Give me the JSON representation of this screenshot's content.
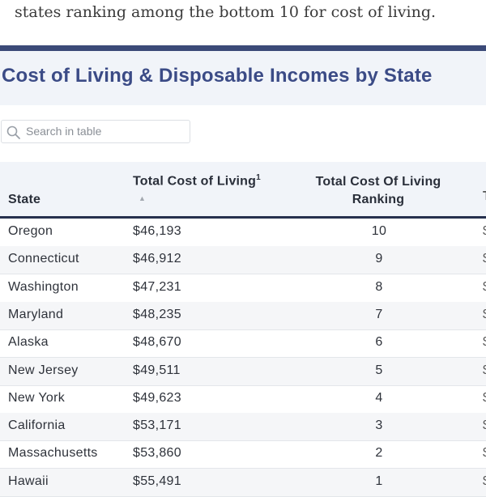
{
  "intro": {
    "line": "states ranking among the bottom 10 for cost of living."
  },
  "table": {
    "title": "Cost of Living & Disposable Incomes by State",
    "search": {
      "placeholder": "Search in table"
    },
    "columns": {
      "state": "State",
      "cost": "Total Cost of Living",
      "cost_footnote": "1",
      "rank": "Total Cost Of Living Ranking"
    },
    "rows": [
      {
        "state": "Oregon",
        "cost": "$46,193",
        "rank": "10"
      },
      {
        "state": "Connecticut",
        "cost": "$46,912",
        "rank": "9"
      },
      {
        "state": "Washington",
        "cost": "$47,231",
        "rank": "8"
      },
      {
        "state": "Maryland",
        "cost": "$48,235",
        "rank": "7"
      },
      {
        "state": "Alaska",
        "cost": "$48,670",
        "rank": "6"
      },
      {
        "state": "New Jersey",
        "cost": "$49,511",
        "rank": "5"
      },
      {
        "state": "New York",
        "cost": "$49,623",
        "rank": "4"
      },
      {
        "state": "California",
        "cost": "$53,171",
        "rank": "3"
      },
      {
        "state": "Massachusetts",
        "cost": "$53,860",
        "rank": "2"
      },
      {
        "state": "Hawaii",
        "cost": "$55,491",
        "rank": "1"
      }
    ]
  },
  "colors": {
    "title": "#3b4b86",
    "header_rule": "#26304e",
    "band": "#f1f4f9"
  },
  "icons": {
    "search": "search-icon",
    "sort": "sort-ascending-icon"
  }
}
